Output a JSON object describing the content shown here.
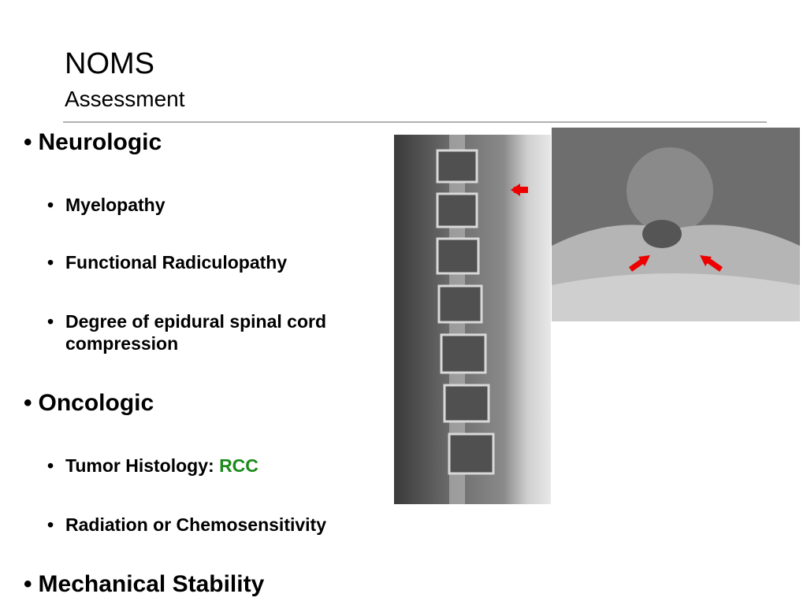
{
  "header": {
    "title": "NOMS",
    "subtitle": "Assessment"
  },
  "sections": [
    {
      "heading": "Neurologic",
      "items": [
        {
          "text": "Myelopathy"
        },
        {
          "text": "Functional Radiculopathy"
        },
        {
          "text": "Degree of epidural spinal cord compression"
        }
      ]
    },
    {
      "heading": "Oncologic",
      "items": [
        {
          "text": "Tumor Histology:",
          "highlight": "RCC"
        },
        {
          "text": "Radiation or Chemosensitivity"
        }
      ]
    },
    {
      "heading": "Mechanical Stability",
      "items": []
    }
  ]
}
